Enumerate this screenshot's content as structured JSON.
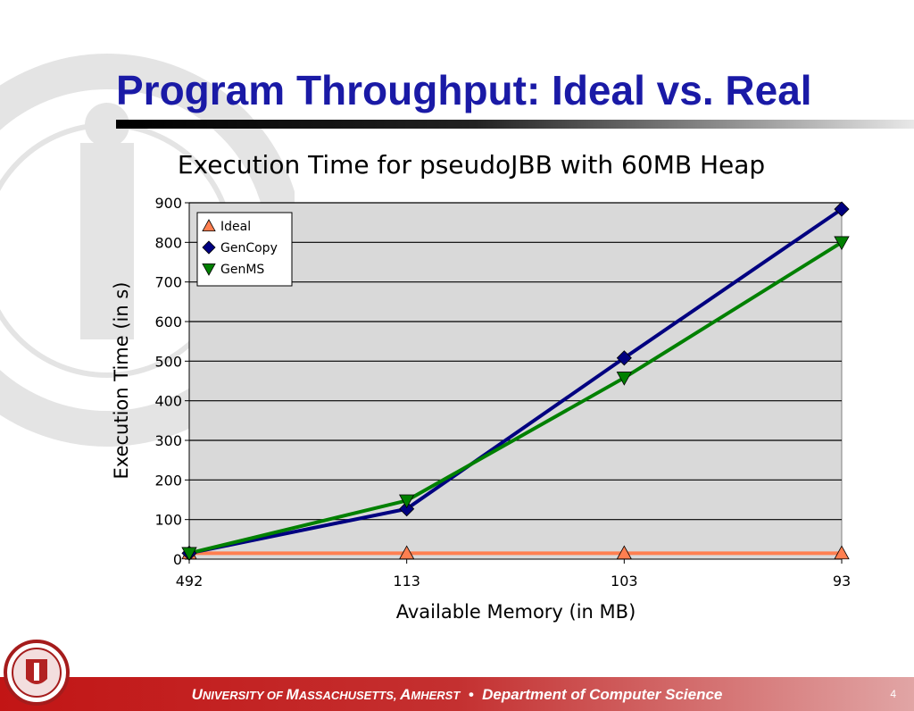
{
  "slide": {
    "title": "Program Throughput: Ideal vs. Real",
    "page_number": "4",
    "footer": {
      "university_u": "U",
      "university_rest1": "NIVERSITY OF ",
      "university_m": "M",
      "university_rest2": "ASSACHUSETTS, ",
      "university_a": "A",
      "university_rest3": "MHERST",
      "separator": "•",
      "department": "Department of Computer Science"
    }
  },
  "chart_data": {
    "type": "line",
    "title": "Execution Time for pseudoJBB with 60MB Heap",
    "xlabel": "Available Memory (in MB)",
    "ylabel": "Execution Time (in s)",
    "categories": [
      "492",
      "113",
      "103",
      "93"
    ],
    "yticks": [
      0,
      100,
      200,
      300,
      400,
      500,
      600,
      700,
      800,
      900
    ],
    "ylim": [
      0,
      900
    ],
    "grid": true,
    "plot_background": "#d9d9d9",
    "legend": "top-left",
    "series": [
      {
        "name": "Ideal",
        "values": [
          15,
          15,
          15,
          15
        ],
        "color": "#ff7f50",
        "marker": "triangle-up"
      },
      {
        "name": "GenCopy",
        "values": [
          15,
          127,
          508,
          884
        ],
        "color": "#000080",
        "marker": "diamond"
      },
      {
        "name": "GenMS",
        "values": [
          15,
          148,
          458,
          800
        ],
        "color": "#008000",
        "marker": "triangle-down"
      }
    ]
  }
}
